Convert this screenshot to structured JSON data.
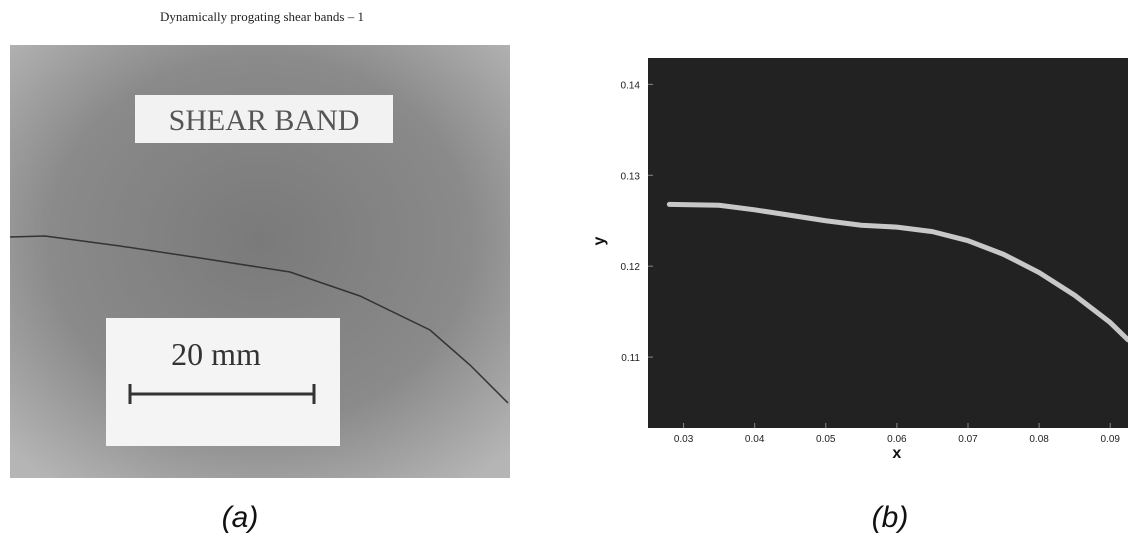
{
  "panel_a": {
    "title": "Dynamically progating shear bands – 1",
    "label": "SHEAR BAND",
    "scale": "20 mm",
    "caption": "(a)"
  },
  "chart_data": {
    "type": "line",
    "caption": "(b)",
    "xlabel": "x",
    "ylabel": "y",
    "x": [
      0.028,
      0.035,
      0.04,
      0.045,
      0.05,
      0.055,
      0.06,
      0.065,
      0.07,
      0.075,
      0.08,
      0.085,
      0.09,
      0.0925
    ],
    "values": [
      0.1268,
      0.1267,
      0.1262,
      0.1256,
      0.125,
      0.1245,
      0.1243,
      0.1238,
      0.1228,
      0.1213,
      0.1193,
      0.1168,
      0.1138,
      0.1119
    ],
    "color": "#c8c8c8",
    "background": "#222222",
    "xlim": [
      0.025,
      0.0925
    ],
    "ylim": [
      0.1022,
      0.1429
    ],
    "xticks": [
      0.03,
      0.04,
      0.05,
      0.06,
      0.07,
      0.08,
      0.09
    ],
    "yticks": [
      0.11,
      0.12,
      0.13,
      0.14
    ]
  }
}
